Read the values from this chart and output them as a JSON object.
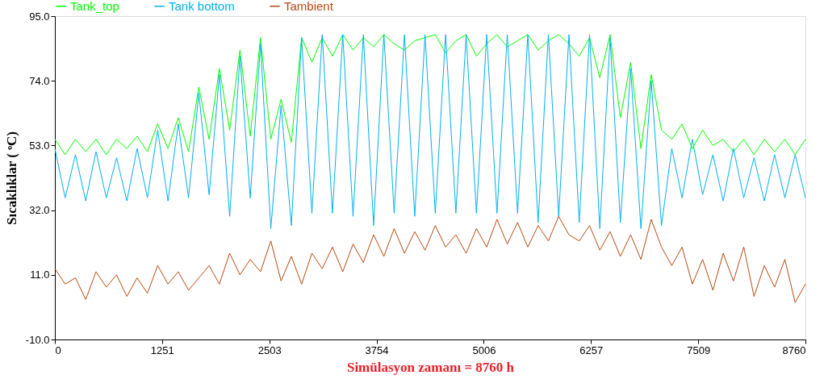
{
  "chart_data": {
    "type": "line",
    "xlabel": "Simülasyon zamanı = 8760 h",
    "ylabel": "Sıcaklıklar ( ᵒC)",
    "x": [
      0,
      120,
      240,
      360,
      480,
      600,
      720,
      840,
      960,
      1080,
      1200,
      1320,
      1440,
      1560,
      1680,
      1800,
      1920,
      2040,
      2160,
      2280,
      2400,
      2520,
      2640,
      2760,
      2880,
      3000,
      3120,
      3240,
      3360,
      3480,
      3600,
      3720,
      3840,
      3960,
      4080,
      4200,
      4320,
      4440,
      4560,
      4680,
      4800,
      4920,
      5040,
      5160,
      5280,
      5400,
      5520,
      5640,
      5760,
      5880,
      6000,
      6120,
      6240,
      6360,
      6480,
      6600,
      6720,
      6840,
      6960,
      7080,
      7200,
      7320,
      7440,
      7560,
      7680,
      7800,
      7920,
      8040,
      8160,
      8280,
      8400,
      8520,
      8640,
      8760
    ],
    "series": [
      {
        "name": "Tank_top",
        "color": "#00ff00",
        "values": [
          55,
          50,
          55,
          51,
          55,
          50,
          55,
          52,
          56,
          51,
          60,
          52,
          62,
          51,
          72,
          55,
          78,
          58,
          84,
          56,
          88,
          55,
          68,
          54,
          88,
          80,
          88,
          82,
          89,
          84,
          88,
          85,
          89,
          86,
          84,
          87,
          88,
          89,
          83,
          87,
          89,
          82,
          86,
          89,
          85,
          87,
          89,
          84,
          87,
          89,
          86,
          82,
          88,
          75,
          89,
          62,
          80,
          52,
          76,
          58,
          55,
          60,
          52,
          58,
          53,
          55,
          51,
          55,
          50,
          55,
          51,
          55,
          50,
          55
        ]
      },
      {
        "name": "Tank bottom",
        "color": "#00b0f0",
        "values": [
          52,
          36,
          50,
          35,
          51,
          36,
          49,
          35,
          52,
          36,
          58,
          35,
          60,
          36,
          70,
          37,
          76,
          30,
          82,
          36,
          86,
          26,
          66,
          27,
          88,
          31,
          89,
          31,
          89,
          30,
          89,
          27,
          89,
          31,
          89,
          30,
          89,
          31,
          89,
          31,
          89,
          31,
          89,
          31,
          89,
          31,
          89,
          28,
          89,
          30,
          89,
          28,
          89,
          26,
          88,
          28,
          78,
          26,
          74,
          27,
          52,
          36,
          55,
          37,
          50,
          35,
          52,
          36,
          49,
          35,
          50,
          36,
          50,
          36
        ]
      },
      {
        "name": "Tambient",
        "color": "#b84a10",
        "values": [
          13,
          8,
          10,
          3,
          12,
          7,
          11,
          4,
          10,
          5,
          14,
          8,
          12,
          6,
          10,
          14,
          8,
          18,
          11,
          16,
          12,
          22,
          9,
          17,
          8,
          18,
          13,
          20,
          12,
          21,
          15,
          24,
          17,
          26,
          18,
          25,
          19,
          27,
          20,
          24,
          18,
          26,
          20,
          29,
          21,
          28,
          20,
          27,
          22,
          30,
          24,
          22,
          27,
          19,
          25,
          17,
          24,
          16,
          29,
          20,
          14,
          20,
          8,
          16,
          6,
          18,
          9,
          20,
          4,
          14,
          7,
          16,
          2,
          8
        ]
      }
    ],
    "xlim": [
      0,
      8760
    ],
    "xticks": [
      0,
      1251,
      2503,
      3754,
      5006,
      6257,
      7509,
      8760
    ],
    "ylim": [
      -10,
      95
    ],
    "yticks": [
      {
        "value": -10,
        "label": "-10.0"
      },
      {
        "value": 11,
        "label": "11.0"
      },
      {
        "value": 32,
        "label": "32.0"
      },
      {
        "value": 53,
        "label": "53.0"
      },
      {
        "value": 74,
        "label": "74.0"
      },
      {
        "value": 95,
        "label": "95.0"
      }
    ],
    "legend": "top left",
    "grid": false,
    "marker": "none",
    "line_style": "solid"
  }
}
